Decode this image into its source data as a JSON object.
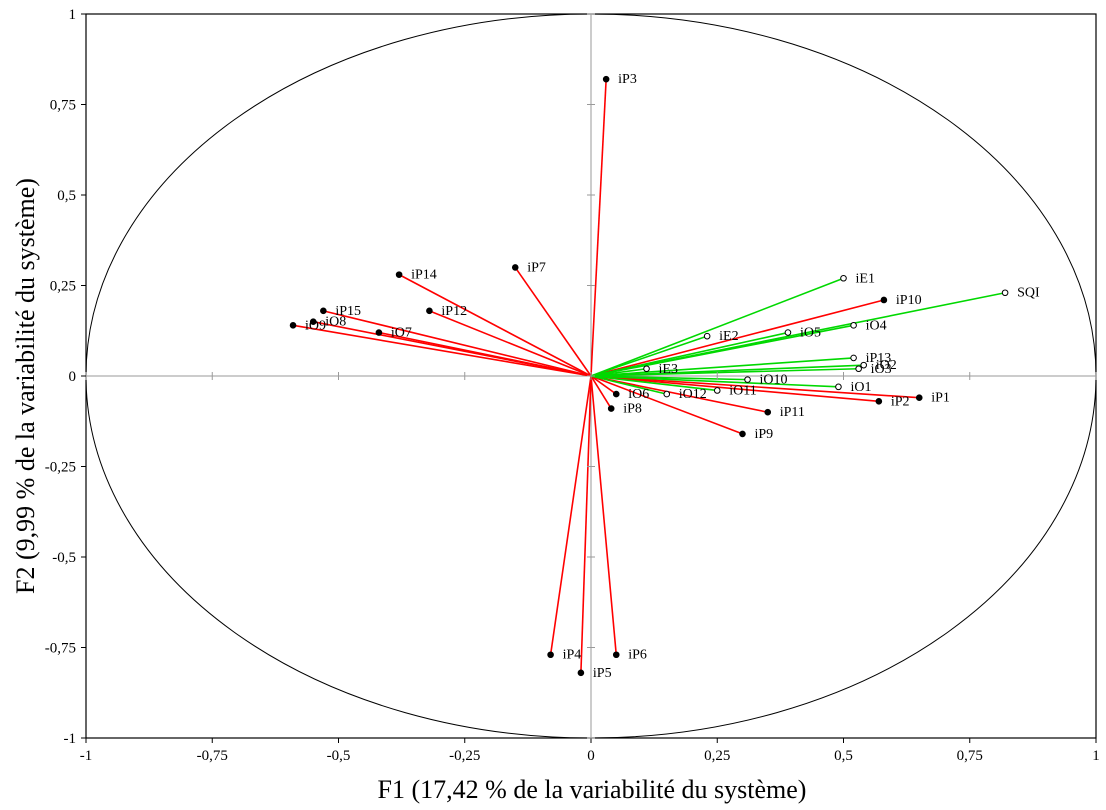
{
  "chart_data": {
    "type": "scatter",
    "title": "",
    "xlabel": "F1 (17,42 % de la variabilité du système)",
    "ylabel": "F2 (9,99 % de la variabilité du système)",
    "xlim": [
      -1,
      1
    ],
    "ylim": [
      -1,
      1
    ],
    "x_ticks": [
      -1,
      -0.75,
      -0.5,
      -0.25,
      0,
      0.25,
      0.5,
      0.75,
      1
    ],
    "x_tick_labels": [
      "-1",
      "-0,75",
      "-0,5",
      "-0,25",
      "0",
      "0,25",
      "0,5",
      "0,75",
      "1"
    ],
    "y_ticks": [
      -1,
      -0.75,
      -0.5,
      -0.25,
      0,
      0.25,
      0.5,
      0.75,
      1
    ],
    "y_tick_labels": [
      "-1",
      "-0,75",
      "-0,5",
      "-0,25",
      "0",
      "0,25",
      "0,5",
      "0,75",
      "1"
    ],
    "grid": false,
    "correlation_circle": true,
    "colors": {
      "red_vectors": "#ff0000",
      "green_vectors": "#00d800",
      "axes": "#9a9a9a",
      "circle": "#000000"
    },
    "series": [
      {
        "color_key": "red_vectors",
        "marker": "filled",
        "points": [
          {
            "label": "iP3",
            "x": 0.03,
            "y": 0.82
          },
          {
            "label": "iP7",
            "x": -0.15,
            "y": 0.3
          },
          {
            "label": "iP14",
            "x": -0.38,
            "y": 0.28
          },
          {
            "label": "iP12",
            "x": -0.32,
            "y": 0.18
          },
          {
            "label": "iP15",
            "x": -0.53,
            "y": 0.18
          },
          {
            "label": "iO8",
            "x": -0.55,
            "y": 0.15
          },
          {
            "label": "iO9",
            "x": -0.59,
            "y": 0.14
          },
          {
            "label": "iO7",
            "x": -0.42,
            "y": 0.12
          },
          {
            "label": "iP10",
            "x": 0.58,
            "y": 0.21
          },
          {
            "label": "iP1",
            "x": 0.65,
            "y": -0.06
          },
          {
            "label": "iP2",
            "x": 0.57,
            "y": -0.07
          },
          {
            "label": "iP11",
            "x": 0.35,
            "y": -0.1
          },
          {
            "label": "iP9",
            "x": 0.3,
            "y": -0.16
          },
          {
            "label": "iO6",
            "x": 0.05,
            "y": -0.05
          },
          {
            "label": "iP8",
            "x": 0.04,
            "y": -0.09
          },
          {
            "label": "iP4",
            "x": -0.08,
            "y": -0.77
          },
          {
            "label": "iP5",
            "x": -0.02,
            "y": -0.82
          },
          {
            "label": "iP6",
            "x": 0.05,
            "y": -0.77
          }
        ]
      },
      {
        "color_key": "green_vectors",
        "marker": "hollow",
        "points": [
          {
            "label": "SQI",
            "x": 0.82,
            "y": 0.23
          },
          {
            "label": "iE1",
            "x": 0.5,
            "y": 0.27
          },
          {
            "label": "iO4",
            "x": 0.52,
            "y": 0.14
          },
          {
            "label": "iO5",
            "x": 0.39,
            "y": 0.12
          },
          {
            "label": "iE2",
            "x": 0.23,
            "y": 0.11
          },
          {
            "label": "iP13",
            "x": 0.52,
            "y": 0.05
          },
          {
            "label": "iO2",
            "x": 0.54,
            "y": 0.03
          },
          {
            "label": "iO3",
            "x": 0.53,
            "y": 0.02
          },
          {
            "label": "iE3",
            "x": 0.11,
            "y": 0.02
          },
          {
            "label": "iO10",
            "x": 0.31,
            "y": -0.01
          },
          {
            "label": "iO1",
            "x": 0.49,
            "y": -0.03
          },
          {
            "label": "iO11",
            "x": 0.25,
            "y": -0.04
          },
          {
            "label": "iO12",
            "x": 0.15,
            "y": -0.05
          }
        ]
      }
    ]
  }
}
